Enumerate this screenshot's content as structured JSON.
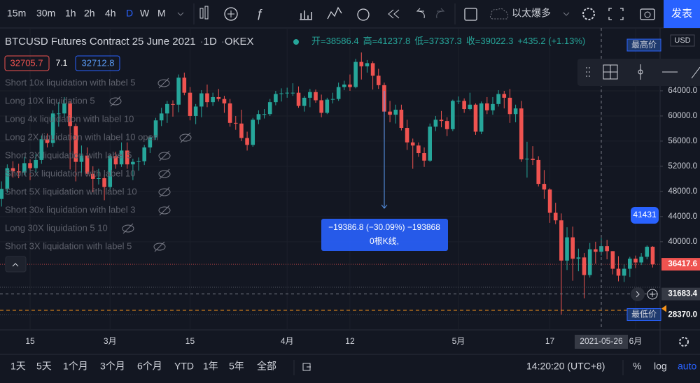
{
  "toolbar": {
    "intervals": [
      "15m",
      "30m",
      "1h",
      "2h",
      "4h",
      "D",
      "W",
      "M"
    ],
    "active_interval": "D",
    "layout_name": "以太爆多",
    "publish": "发表"
  },
  "header": {
    "symbol": "BTCUSD Futures Contract 25 June 2021",
    "interval": "1D",
    "exchange": "OKEX",
    "ohlc": [
      "开=38586.4",
      "高=41237.8",
      "低=37337.3",
      "收=39022.3",
      "+435.2 (+1.13%)"
    ],
    "bid": "32705.7",
    "spread": "7.1",
    "ask": "32712.8"
  },
  "indicators": [
    "Short 10x liquidation with label 5",
    "Long 10X liquidation 5",
    "Long 4x liquidation with label 10",
    "Long 2X liquidation with label 10 open",
    "Short 3X liquidation with label 5",
    "Short 5x liquidation with label 10",
    "Short 5X liquidation with label 10",
    "Short 30x liquidation with label 3",
    "Long 30X liquidation 5 10",
    "Short 3X liquidation with label 5"
  ],
  "measure": {
    "line1": "−19386.8 (−30.09%) −193868",
    "line2": "0根K线,"
  },
  "badge": "41431",
  "drawing_tools": true,
  "chart_data": {
    "type": "candlestick",
    "up_color": "#26a69a",
    "down_color": "#ef5350",
    "currency": "USD",
    "ylim": [
      26200,
      74000
    ],
    "yticks": [
      {
        "value": 40000,
        "label": "40000.0"
      },
      {
        "value": 44000,
        "label": "44000.0"
      },
      {
        "value": 48000,
        "label": "48000.0"
      },
      {
        "value": 52000,
        "label": "52000.0"
      },
      {
        "value": 56000,
        "label": "56000.0"
      },
      {
        "value": 60000,
        "label": "60000.0"
      },
      {
        "value": 64000,
        "label": "64000.0"
      }
    ],
    "high_label": "最高价",
    "low_label": "最低价",
    "price_labels": [
      {
        "value": 36417.6,
        "label": "36417.6"
      },
      {
        "value": 31683.4,
        "label": "31683.4"
      },
      {
        "value": 28370,
        "label": "28370.0"
      }
    ],
    "crosshair_date": "2021-05-26",
    "xticks": [
      {
        "value": "2021-02-15",
        "label": "15"
      },
      {
        "value": "2021-03-01",
        "label": "3月"
      },
      {
        "value": "2021-03-15",
        "label": "15"
      },
      {
        "value": "2021-04-01",
        "label": "4月"
      },
      {
        "value": "2021-04-12",
        "label": "12"
      },
      {
        "value": "2021-05-01",
        "label": "5月"
      },
      {
        "value": "2021-05-17",
        "label": "17"
      },
      {
        "value": "2021-06-01",
        "label": "6月"
      }
    ],
    "x": [
      "2021-02-10",
      "2021-02-11",
      "2021-02-12",
      "2021-02-13",
      "2021-02-14",
      "2021-02-15",
      "2021-02-16",
      "2021-02-17",
      "2021-02-18",
      "2021-02-19",
      "2021-02-20",
      "2021-02-21",
      "2021-02-22",
      "2021-02-23",
      "2021-02-24",
      "2021-02-25",
      "2021-02-26",
      "2021-02-27",
      "2021-02-28",
      "2021-03-01",
      "2021-03-02",
      "2021-03-03",
      "2021-03-04",
      "2021-03-05",
      "2021-03-06",
      "2021-03-07",
      "2021-03-08",
      "2021-03-09",
      "2021-03-10",
      "2021-03-11",
      "2021-03-12",
      "2021-03-13",
      "2021-03-14",
      "2021-03-15",
      "2021-03-16",
      "2021-03-17",
      "2021-03-18",
      "2021-03-19",
      "2021-03-20",
      "2021-03-21",
      "2021-03-22",
      "2021-03-23",
      "2021-03-24",
      "2021-03-25",
      "2021-03-26",
      "2021-03-27",
      "2021-03-28",
      "2021-03-29",
      "2021-03-30",
      "2021-03-31",
      "2021-04-01",
      "2021-04-02",
      "2021-04-03",
      "2021-04-04",
      "2021-04-05",
      "2021-04-06",
      "2021-04-07",
      "2021-04-08",
      "2021-04-09",
      "2021-04-10",
      "2021-04-11",
      "2021-04-12",
      "2021-04-13",
      "2021-04-14",
      "2021-04-15",
      "2021-04-16",
      "2021-04-17",
      "2021-04-18",
      "2021-04-19",
      "2021-04-20",
      "2021-04-21",
      "2021-04-22",
      "2021-04-23",
      "2021-04-24",
      "2021-04-25",
      "2021-04-26",
      "2021-04-27",
      "2021-04-28",
      "2021-04-29",
      "2021-04-30",
      "2021-05-01",
      "2021-05-02",
      "2021-05-03",
      "2021-05-04",
      "2021-05-05",
      "2021-05-06",
      "2021-05-07",
      "2021-05-08",
      "2021-05-09",
      "2021-05-10",
      "2021-05-11",
      "2021-05-12",
      "2021-05-13",
      "2021-05-14",
      "2021-05-15",
      "2021-05-16",
      "2021-05-17",
      "2021-05-18",
      "2021-05-19",
      "2021-05-20",
      "2021-05-21",
      "2021-05-22",
      "2021-05-23",
      "2021-05-24",
      "2021-05-25",
      "2021-05-26",
      "2021-05-27",
      "2021-05-28",
      "2021-05-29",
      "2021-05-30",
      "2021-05-31",
      "2021-06-01",
      "2021-06-02",
      "2021-06-03",
      "2021-06-04"
    ],
    "ohlc": [
      [
        46800,
        49600,
        45600,
        48400
      ],
      [
        48400,
        52300,
        47800,
        51700
      ],
      [
        51700,
        52800,
        50200,
        51200
      ],
      [
        51200,
        52400,
        50100,
        51000
      ],
      [
        51000,
        53500,
        50600,
        52500
      ],
      [
        52500,
        53100,
        49800,
        51700
      ],
      [
        51700,
        53900,
        51000,
        53000
      ],
      [
        53000,
        56900,
        52400,
        56300
      ],
      [
        56300,
        57200,
        55000,
        55700
      ],
      [
        55700,
        60900,
        55100,
        60400
      ],
      [
        60400,
        62200,
        58300,
        60400
      ],
      [
        60400,
        63000,
        59800,
        62000
      ],
      [
        62000,
        62400,
        51500,
        58400
      ],
      [
        58400,
        58800,
        49600,
        52700
      ],
      [
        52700,
        55300,
        50900,
        53700
      ],
      [
        53700,
        55000,
        50400,
        50800
      ],
      [
        50800,
        52000,
        47900,
        50000
      ],
      [
        50000,
        51600,
        49100,
        50100
      ],
      [
        50100,
        50700,
        46600,
        48700
      ],
      [
        48700,
        53900,
        48300,
        53600
      ],
      [
        53600,
        54300,
        51600,
        52300
      ],
      [
        52300,
        55800,
        51900,
        54500
      ],
      [
        54500,
        55800,
        51600,
        52300
      ],
      [
        52300,
        53200,
        49800,
        52700
      ],
      [
        52700,
        53400,
        51300,
        52800
      ],
      [
        52800,
        55400,
        52200,
        55000
      ],
      [
        55000,
        56900,
        54100,
        56600
      ],
      [
        56600,
        59700,
        56200,
        59300
      ],
      [
        59300,
        61300,
        58400,
        60400
      ],
      [
        60400,
        62400,
        58900,
        61900
      ],
      [
        61900,
        62500,
        59900,
        61800
      ],
      [
        61800,
        66600,
        60600,
        66100
      ],
      [
        66100,
        66900,
        63300,
        63700
      ],
      [
        63700,
        64600,
        59300,
        60000
      ],
      [
        60000,
        61900,
        58700,
        61500
      ],
      [
        61500,
        64100,
        59800,
        63600
      ],
      [
        63600,
        65000,
        61400,
        62200
      ],
      [
        62200,
        63700,
        61600,
        63000
      ],
      [
        63000,
        64300,
        62300,
        62700
      ],
      [
        62700,
        63200,
        60500,
        62000
      ],
      [
        62000,
        62700,
        58300,
        58900
      ],
      [
        58900,
        60000,
        57800,
        58800
      ],
      [
        58800,
        61000,
        56000,
        56500
      ],
      [
        56500,
        57500,
        54500,
        55400
      ],
      [
        55400,
        59700,
        55100,
        59400
      ],
      [
        59400,
        60900,
        58700,
        60300
      ],
      [
        60300,
        61100,
        59600,
        60300
      ],
      [
        60300,
        62700,
        60000,
        62200
      ],
      [
        62200,
        64000,
        61700,
        63500
      ],
      [
        63500,
        64400,
        62300,
        63600
      ],
      [
        63600,
        64500,
        62900,
        63700
      ],
      [
        63700,
        65200,
        63200,
        63700
      ],
      [
        63700,
        64700,
        61300,
        61600
      ],
      [
        61600,
        63200,
        60700,
        62900
      ],
      [
        62900,
        64300,
        61400,
        63800
      ],
      [
        63800,
        64200,
        62100,
        62500
      ],
      [
        62500,
        63400,
        59800,
        60500
      ],
      [
        60500,
        62900,
        60300,
        62600
      ],
      [
        62600,
        63700,
        62000,
        62700
      ],
      [
        62700,
        65300,
        62400,
        64600
      ],
      [
        64600,
        65600,
        64100,
        65000
      ],
      [
        65000,
        66600,
        64000,
        64600
      ],
      [
        64600,
        69100,
        64400,
        68600
      ],
      [
        68600,
        70100,
        65800,
        67900
      ],
      [
        67900,
        68900,
        66900,
        68400
      ],
      [
        68400,
        68700,
        64200,
        66400
      ],
      [
        66400,
        67500,
        64300,
        64900
      ],
      [
        64900,
        65300,
        56300,
        60700
      ],
      [
        60700,
        62400,
        59000,
        60200
      ],
      [
        60200,
        61800,
        58800,
        61000
      ],
      [
        61000,
        61800,
        57700,
        58100
      ],
      [
        58100,
        59400,
        54600,
        55800
      ],
      [
        55800,
        56400,
        51600,
        55300
      ],
      [
        55300,
        55800,
        53500,
        54100
      ],
      [
        54100,
        55000,
        51900,
        52900
      ],
      [
        52900,
        58800,
        52700,
        58300
      ],
      [
        58300,
        60000,
        57600,
        59400
      ],
      [
        59400,
        60800,
        58200,
        59200
      ],
      [
        59200,
        59800,
        56800,
        57900
      ],
      [
        57900,
        62600,
        57600,
        62400
      ],
      [
        62400,
        63100,
        61900,
        62400
      ],
      [
        62400,
        62800,
        60500,
        61100
      ],
      [
        61100,
        63700,
        60900,
        61800
      ],
      [
        61800,
        62000,
        57000,
        57500
      ],
      [
        57500,
        62300,
        57100,
        62000
      ],
      [
        62000,
        63000,
        60300,
        60900
      ],
      [
        60900,
        63000,
        60200,
        61900
      ],
      [
        61900,
        64100,
        61500,
        63500
      ],
      [
        63500,
        64000,
        61200,
        62900
      ],
      [
        62900,
        64300,
        58900,
        60300
      ],
      [
        60300,
        61800,
        59000,
        61200
      ],
      [
        61200,
        62400,
        52700,
        53100
      ],
      [
        53100,
        55900,
        50200,
        53200
      ],
      [
        53200,
        55200,
        52200,
        53000
      ],
      [
        53000,
        53600,
        48800,
        49200
      ],
      [
        49200,
        51400,
        46800,
        48300
      ],
      [
        48300,
        48500,
        43000,
        44600
      ],
      [
        44600,
        46200,
        42800,
        43400
      ],
      [
        43400,
        44500,
        28370,
        37000
      ],
      [
        37000,
        42300,
        35500,
        40700
      ],
      [
        40700,
        42400,
        33800,
        37300
      ],
      [
        37300,
        38900,
        35300,
        37500
      ],
      [
        37500,
        38200,
        31000,
        34700
      ],
      [
        34700,
        39800,
        34300,
        38800
      ],
      [
        38800,
        40000,
        36500,
        38400
      ],
      [
        38400,
        40600,
        37800,
        39300
      ],
      [
        39300,
        40300,
        37200,
        38500
      ],
      [
        38500,
        38500,
        34800,
        35700
      ],
      [
        35700,
        37700,
        33700,
        34600
      ],
      [
        34600,
        36400,
        33600,
        35700
      ],
      [
        35700,
        37600,
        34400,
        37300
      ],
      [
        37300,
        37800,
        35800,
        36700
      ],
      [
        36700,
        38200,
        36300,
        37600
      ],
      [
        37600,
        39400,
        37200,
        39200
      ],
      [
        39200,
        39300,
        35900,
        36400
      ]
    ]
  },
  "bottom": {
    "ranges": [
      "1天",
      "5天",
      "1个月",
      "3个月",
      "6个月",
      "YTD",
      "1年",
      "5年",
      "全部"
    ],
    "clock": "14:20:20 (UTC+8)",
    "percent": "%",
    "log": "log",
    "auto": "auto"
  }
}
